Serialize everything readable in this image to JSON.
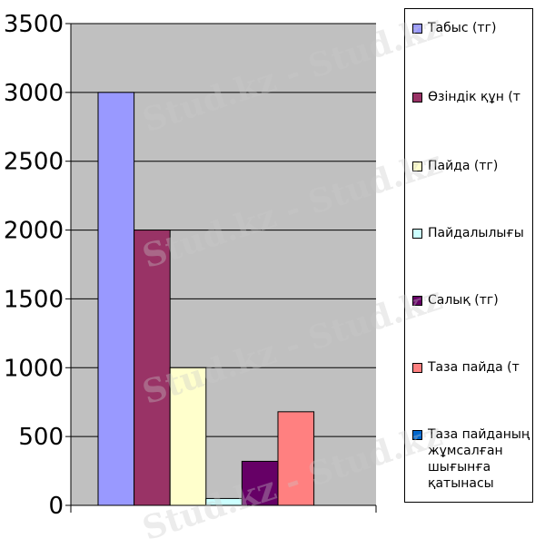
{
  "chart_data": {
    "type": "bar",
    "ylim": [
      0,
      3500
    ],
    "yticks": [
      0,
      500,
      1000,
      1500,
      2000,
      2500,
      3000,
      3500
    ],
    "grid": true,
    "legend_position": "right",
    "plot_background": "#c0c0c0",
    "series": [
      {
        "name": "Табыс (тг)",
        "value": 3000,
        "color": "#9999ff"
      },
      {
        "name": "Өзіндік құн (т",
        "value": 2000,
        "color": "#993366"
      },
      {
        "name": "Пайда (тг)",
        "value": 1000,
        "color": "#ffffcc"
      },
      {
        "name": "Пайдалылығы",
        "value": 50,
        "color": "#ccffff"
      },
      {
        "name": "Салық (тг)",
        "value": 320,
        "color": "#660066"
      },
      {
        "name": "Таза пайда (т",
        "value": 680,
        "color": "#ff8080"
      },
      {
        "name": "Таза пайданың жұмсалған шығынға қатынасы",
        "value": 0,
        "color": "#0066cc"
      }
    ]
  },
  "watermark": "Stud.kz - Stud.kz"
}
